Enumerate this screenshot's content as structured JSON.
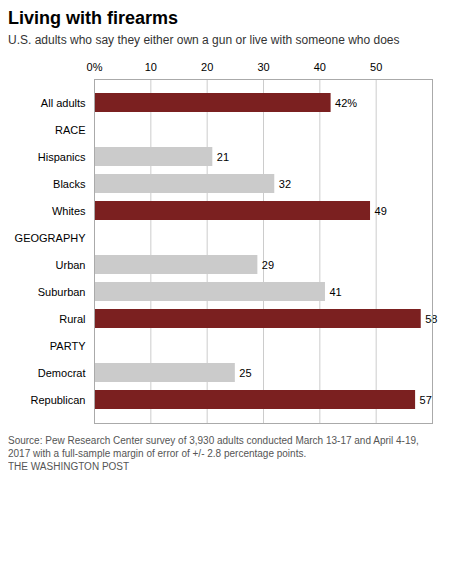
{
  "chart_data": {
    "type": "bar",
    "orientation": "horizontal",
    "title": "Living with firearms",
    "subtitle": "U.S. adults who say they either own a gun or live with someone who does",
    "annotations": [
      "Source: Pew Research Center survey of 3,930 adults conducted March 13-17 and April 4-19,",
      "2017 with a full-sample margin of error of +/- 2.8 percentage points.",
      "THE WASHINGTON POST"
    ],
    "categories": [
      "All adults",
      "RACE",
      "Hispanics",
      "Blacks",
      "Whites",
      "GEOGRAPHY",
      "Urban",
      "Suburban",
      "Rural",
      "PARTY",
      "Democrat",
      "Republican"
    ],
    "values": [
      42,
      null,
      21,
      32,
      49,
      null,
      29,
      41,
      58,
      null,
      25,
      57
    ],
    "value_labels": [
      "42%",
      null,
      "21",
      "32",
      "49",
      null,
      "29",
      "41",
      "58",
      null,
      "25",
      "57"
    ],
    "data_labels": true,
    "colors": [
      "#7B2020",
      null,
      "#CBCBCB",
      "#CBCBCB",
      "#7B2020",
      null,
      "#CBCBCB",
      "#CBCBCB",
      "#7B2020",
      null,
      "#CBCBCB",
      "#7B2020"
    ],
    "xlim": [
      0,
      60
    ],
    "xticks": [
      {
        "value": 0,
        "label": "0%"
      },
      10,
      20,
      30,
      40,
      50
    ],
    "grid": true
  }
}
